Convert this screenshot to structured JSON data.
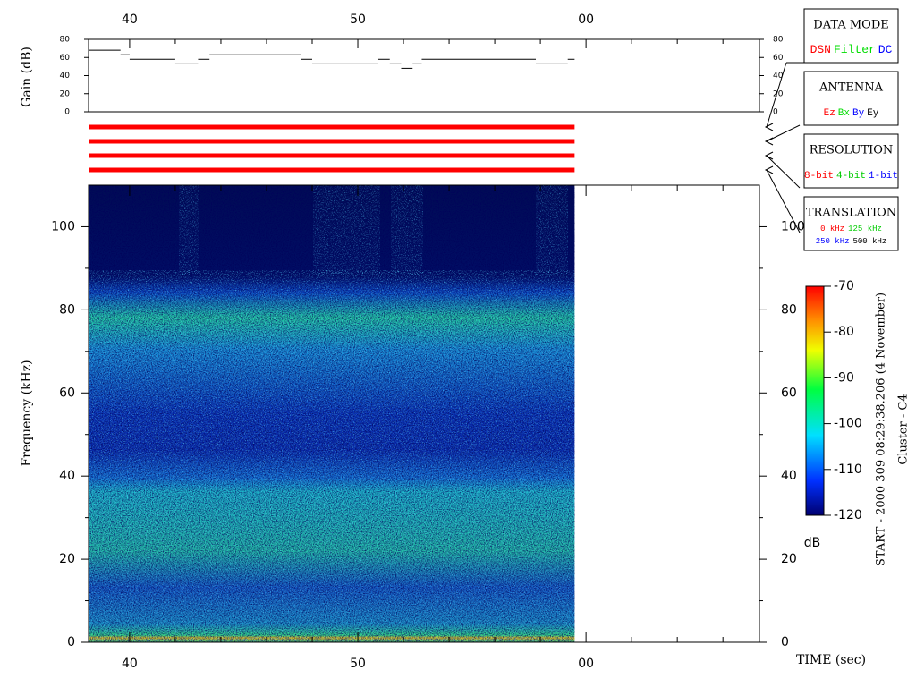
{
  "chart_data": [
    {
      "type": "step",
      "ylabel": "Gain (dB)",
      "x": [
        38.2,
        39.6,
        40.0,
        42.0,
        43.0,
        43.5,
        47.5,
        48.0,
        50.9,
        51.4,
        51.9,
        52.4,
        52.8,
        57.8,
        59.2
      ],
      "x_end": [
        39.6,
        40.0,
        42.0,
        43.0,
        43.5,
        47.5,
        48.0,
        50.9,
        51.4,
        51.9,
        52.4,
        52.8,
        57.8,
        59.2,
        59.5
      ],
      "values": [
        68,
        63,
        58,
        53,
        58,
        63,
        58,
        53,
        58,
        53,
        48,
        53,
        58,
        53,
        58
      ],
      "color": "#000000",
      "ylim": [
        0,
        80
      ],
      "yticks": [
        0,
        20,
        40,
        60,
        80
      ],
      "xlim": [
        38.2,
        67.6
      ],
      "xticks": [
        40,
        50,
        {
          "value": 60,
          "label": "00"
        }
      ],
      "xminorticks": [
        42,
        44,
        46,
        48,
        52,
        54,
        56,
        58,
        62,
        64,
        66
      ]
    },
    {
      "type": "spectrogram",
      "ylabel": "Frequency (kHz)",
      "xlabel": "TIME (sec)",
      "ylim": [
        0,
        110
      ],
      "yticks": [
        0,
        20,
        40,
        60,
        80,
        100
      ],
      "yminorticks": [
        10,
        30,
        50,
        70,
        90
      ],
      "xlim": [
        38.2,
        67.6
      ],
      "data_xlim": [
        38.2,
        59.5
      ],
      "xticks": [
        40,
        50,
        {
          "value": 60,
          "label": "00"
        }
      ],
      "xminorticks": [
        42,
        44,
        46,
        48,
        52,
        54,
        56,
        58,
        62,
        64,
        66
      ],
      "colorbar": {
        "label": "dB",
        "lim": [
          -120,
          -70
        ],
        "ticks": [
          -70,
          -80,
          -90,
          -100,
          -110,
          -120
        ]
      },
      "annotations": [
        "START - 2000 309 08:29:38.206 (4 November)",
        "Cluster - C4"
      ]
    }
  ],
  "panels": [
    {
      "title": "DATA MODE",
      "rows": [
        [
          {
            "text": "DSN",
            "color": "#ff0000"
          },
          {
            "text": "Filter",
            "color": "#00dd00"
          },
          {
            "text": "DC",
            "color": "#0000ff"
          }
        ]
      ]
    },
    {
      "title": "ANTENNA",
      "rows": [
        [
          {
            "text": "Ez",
            "color": "#ff0000"
          },
          {
            "text": "Bx",
            "color": "#00dd00"
          },
          {
            "text": "By",
            "color": "#0000ff"
          },
          {
            "text": "Ey",
            "color": "#000000"
          }
        ]
      ]
    },
    {
      "title": "RESOLUTION",
      "rows": [
        [
          {
            "text": "8-bit",
            "color": "#ff0000"
          },
          {
            "text": "4-bit",
            "color": "#00cc00"
          },
          {
            "text": "1-bit",
            "color": "#0000ff"
          }
        ]
      ]
    },
    {
      "title": "TRANSLATION",
      "rows": [
        [
          {
            "text": "0 kHz",
            "color": "#ff0000"
          },
          {
            "text": "125 kHz",
            "color": "#00cc00"
          }
        ],
        [
          {
            "text": "250 kHz",
            "color": "#0000ff"
          },
          {
            "text": "500 kHz",
            "color": "#000000"
          }
        ]
      ]
    }
  ]
}
